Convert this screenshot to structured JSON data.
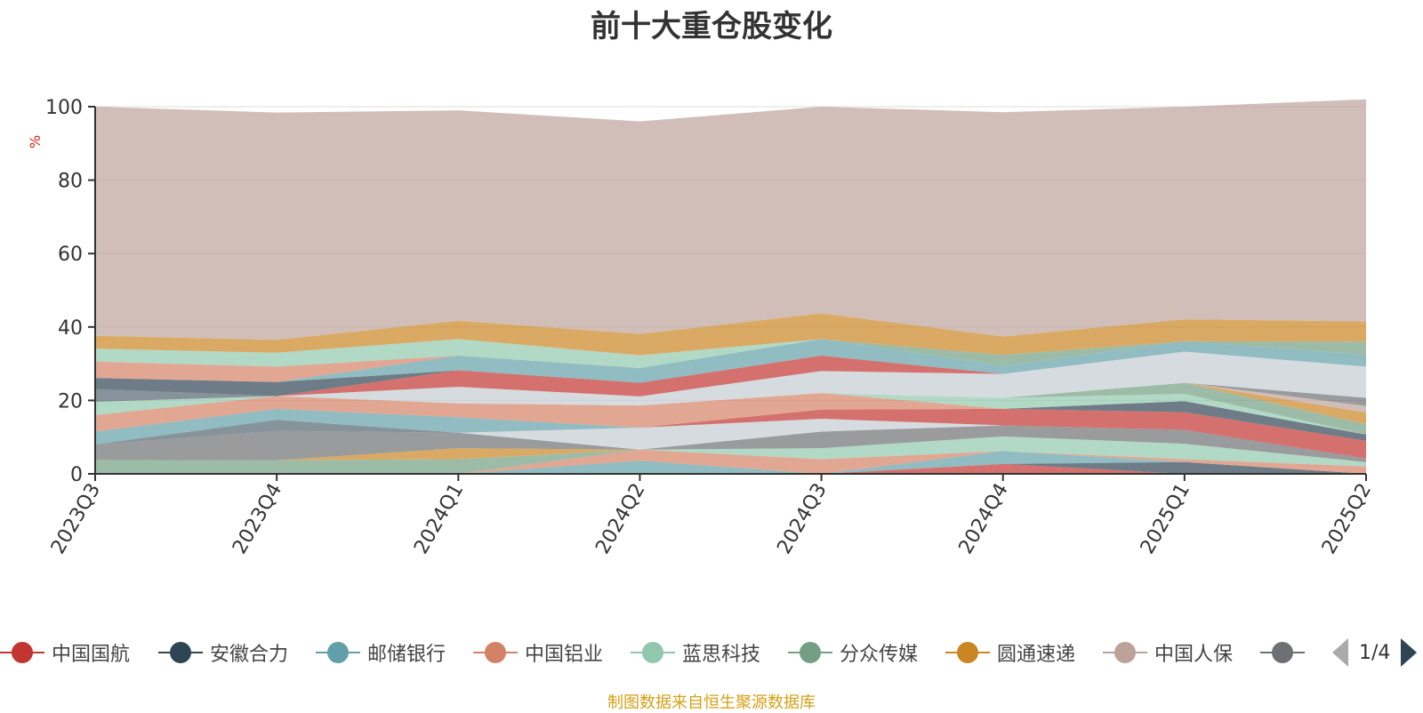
{
  "chart_data": {
    "type": "area",
    "title": "前十大重仓股变化",
    "ylabel": "%",
    "ylim": [
      0,
      100
    ],
    "yticks": [
      0,
      20,
      40,
      60,
      80,
      100
    ],
    "categories": [
      "2023Q3",
      "2023Q4",
      "2024Q1",
      "2024Q2",
      "2024Q3",
      "2024Q4",
      "2025Q1",
      "2025Q2"
    ],
    "grid": true,
    "legend_position": "bottom",
    "series": [
      {
        "name": "中国国航",
        "color": "#c23531",
        "values": [
          0,
          0,
          0,
          0,
          0,
          2.7,
          0,
          0
        ]
      },
      {
        "name": "安徽合力",
        "color": "#2f4554",
        "values": [
          0,
          0,
          0,
          0,
          0,
          0,
          3.2,
          0
        ]
      },
      {
        "name": "邮储银行",
        "color": "#61a0a8",
        "values": [
          0,
          0,
          0,
          3.6,
          0,
          3.5,
          0,
          0
        ]
      },
      {
        "name": "中国铝业",
        "color": "#d48265",
        "values": [
          0,
          0,
          0,
          3.0,
          4.0,
          0,
          0.8,
          2.0
        ]
      },
      {
        "name": "蓝思科技",
        "color": "#91c7ae",
        "values": [
          0,
          0,
          0,
          0,
          3.0,
          4.0,
          4.2,
          1.2
        ]
      },
      {
        "name": "分众传媒",
        "color": "#749f83",
        "values": [
          3.8,
          3.7,
          4.0,
          0,
          0,
          0,
          0,
          0
        ]
      },
      {
        "name": "圆通速递",
        "color": "#ca8622",
        "values": [
          0,
          0,
          3.0,
          0,
          0,
          0,
          0,
          0
        ]
      },
      {
        "name": "中国人保",
        "color": "#bda29a",
        "values": [
          0,
          0,
          0,
          0,
          0,
          0,
          0,
          0
        ]
      },
      {
        "values": [
          4.2,
          8.0,
          4.2,
          0,
          4.5,
          3.0,
          3.8,
          1.0
        ]
      },
      {
        "values": [
          0,
          3.0,
          0,
          0,
          0,
          0,
          0,
          0
        ]
      },
      {
        "values": [
          0,
          0,
          0,
          6.0,
          3.5,
          0,
          0,
          0
        ]
      },
      {
        "values": [
          0,
          0,
          0,
          0,
          2.5,
          4.5,
          4.8,
          4.8
        ]
      },
      {
        "values": [
          0,
          0,
          0,
          0,
          0,
          0,
          3.0,
          1.7
        ]
      },
      {
        "values": [
          3.5,
          3.0,
          4.2,
          0,
          0,
          0,
          0,
          0
        ]
      },
      {
        "values": [
          4.5,
          3.5,
          3.8,
          6.0,
          4.5,
          0,
          0,
          0
        ]
      },
      {
        "values": [
          3.6,
          0,
          0,
          0,
          0,
          3.0,
          2.0,
          0
        ]
      },
      {
        "values": [
          0,
          0,
          0,
          0,
          0,
          0,
          3.0,
          2.8
        ]
      },
      {
        "values": [
          0,
          0,
          0,
          0,
          0,
          0,
          0,
          3.2
        ]
      },
      {
        "values": [
          0,
          0,
          0,
          0,
          0,
          0,
          0,
          1.8
        ]
      },
      {
        "values": [
          0,
          0,
          0,
          0,
          0,
          0,
          0,
          2.2
        ]
      },
      {
        "values": [
          3.5,
          0,
          0,
          0,
          0,
          0,
          0,
          0
        ]
      },
      {
        "values": [
          0,
          0,
          4.5,
          2.5,
          6.0,
          6.5,
          8.5,
          8.5
        ]
      },
      {
        "values": [
          0,
          0,
          4.5,
          3.7,
          4.2,
          0,
          0,
          0
        ]
      },
      {
        "values": [
          3.0,
          3.8,
          0,
          0,
          0,
          0,
          0,
          0
        ]
      },
      {
        "values": [
          0,
          0,
          4.0,
          4.0,
          4.5,
          2.2,
          2.8,
          3.2
        ]
      },
      {
        "values": [
          4.5,
          4.2,
          0,
          0,
          0,
          0,
          0,
          0
        ]
      },
      {
        "values": [
          3.5,
          3.8,
          4.5,
          3.5,
          0,
          0,
          0,
          0
        ]
      },
      {
        "values": [
          0,
          0,
          0,
          0,
          0,
          3.0,
          0,
          3.6
        ]
      },
      {
        "values": [
          3.5,
          3.5,
          5.0,
          5.8,
          7.0,
          5.0,
          6.0,
          5.5
        ]
      },
      {
        "values": [
          62.4,
          61.9,
          57.3,
          57.9,
          56.3,
          61.1,
          57.9,
          60.5
        ]
      }
    ],
    "legend_page": "1/4",
    "source": "制图数据来自恒生聚源数据库"
  }
}
